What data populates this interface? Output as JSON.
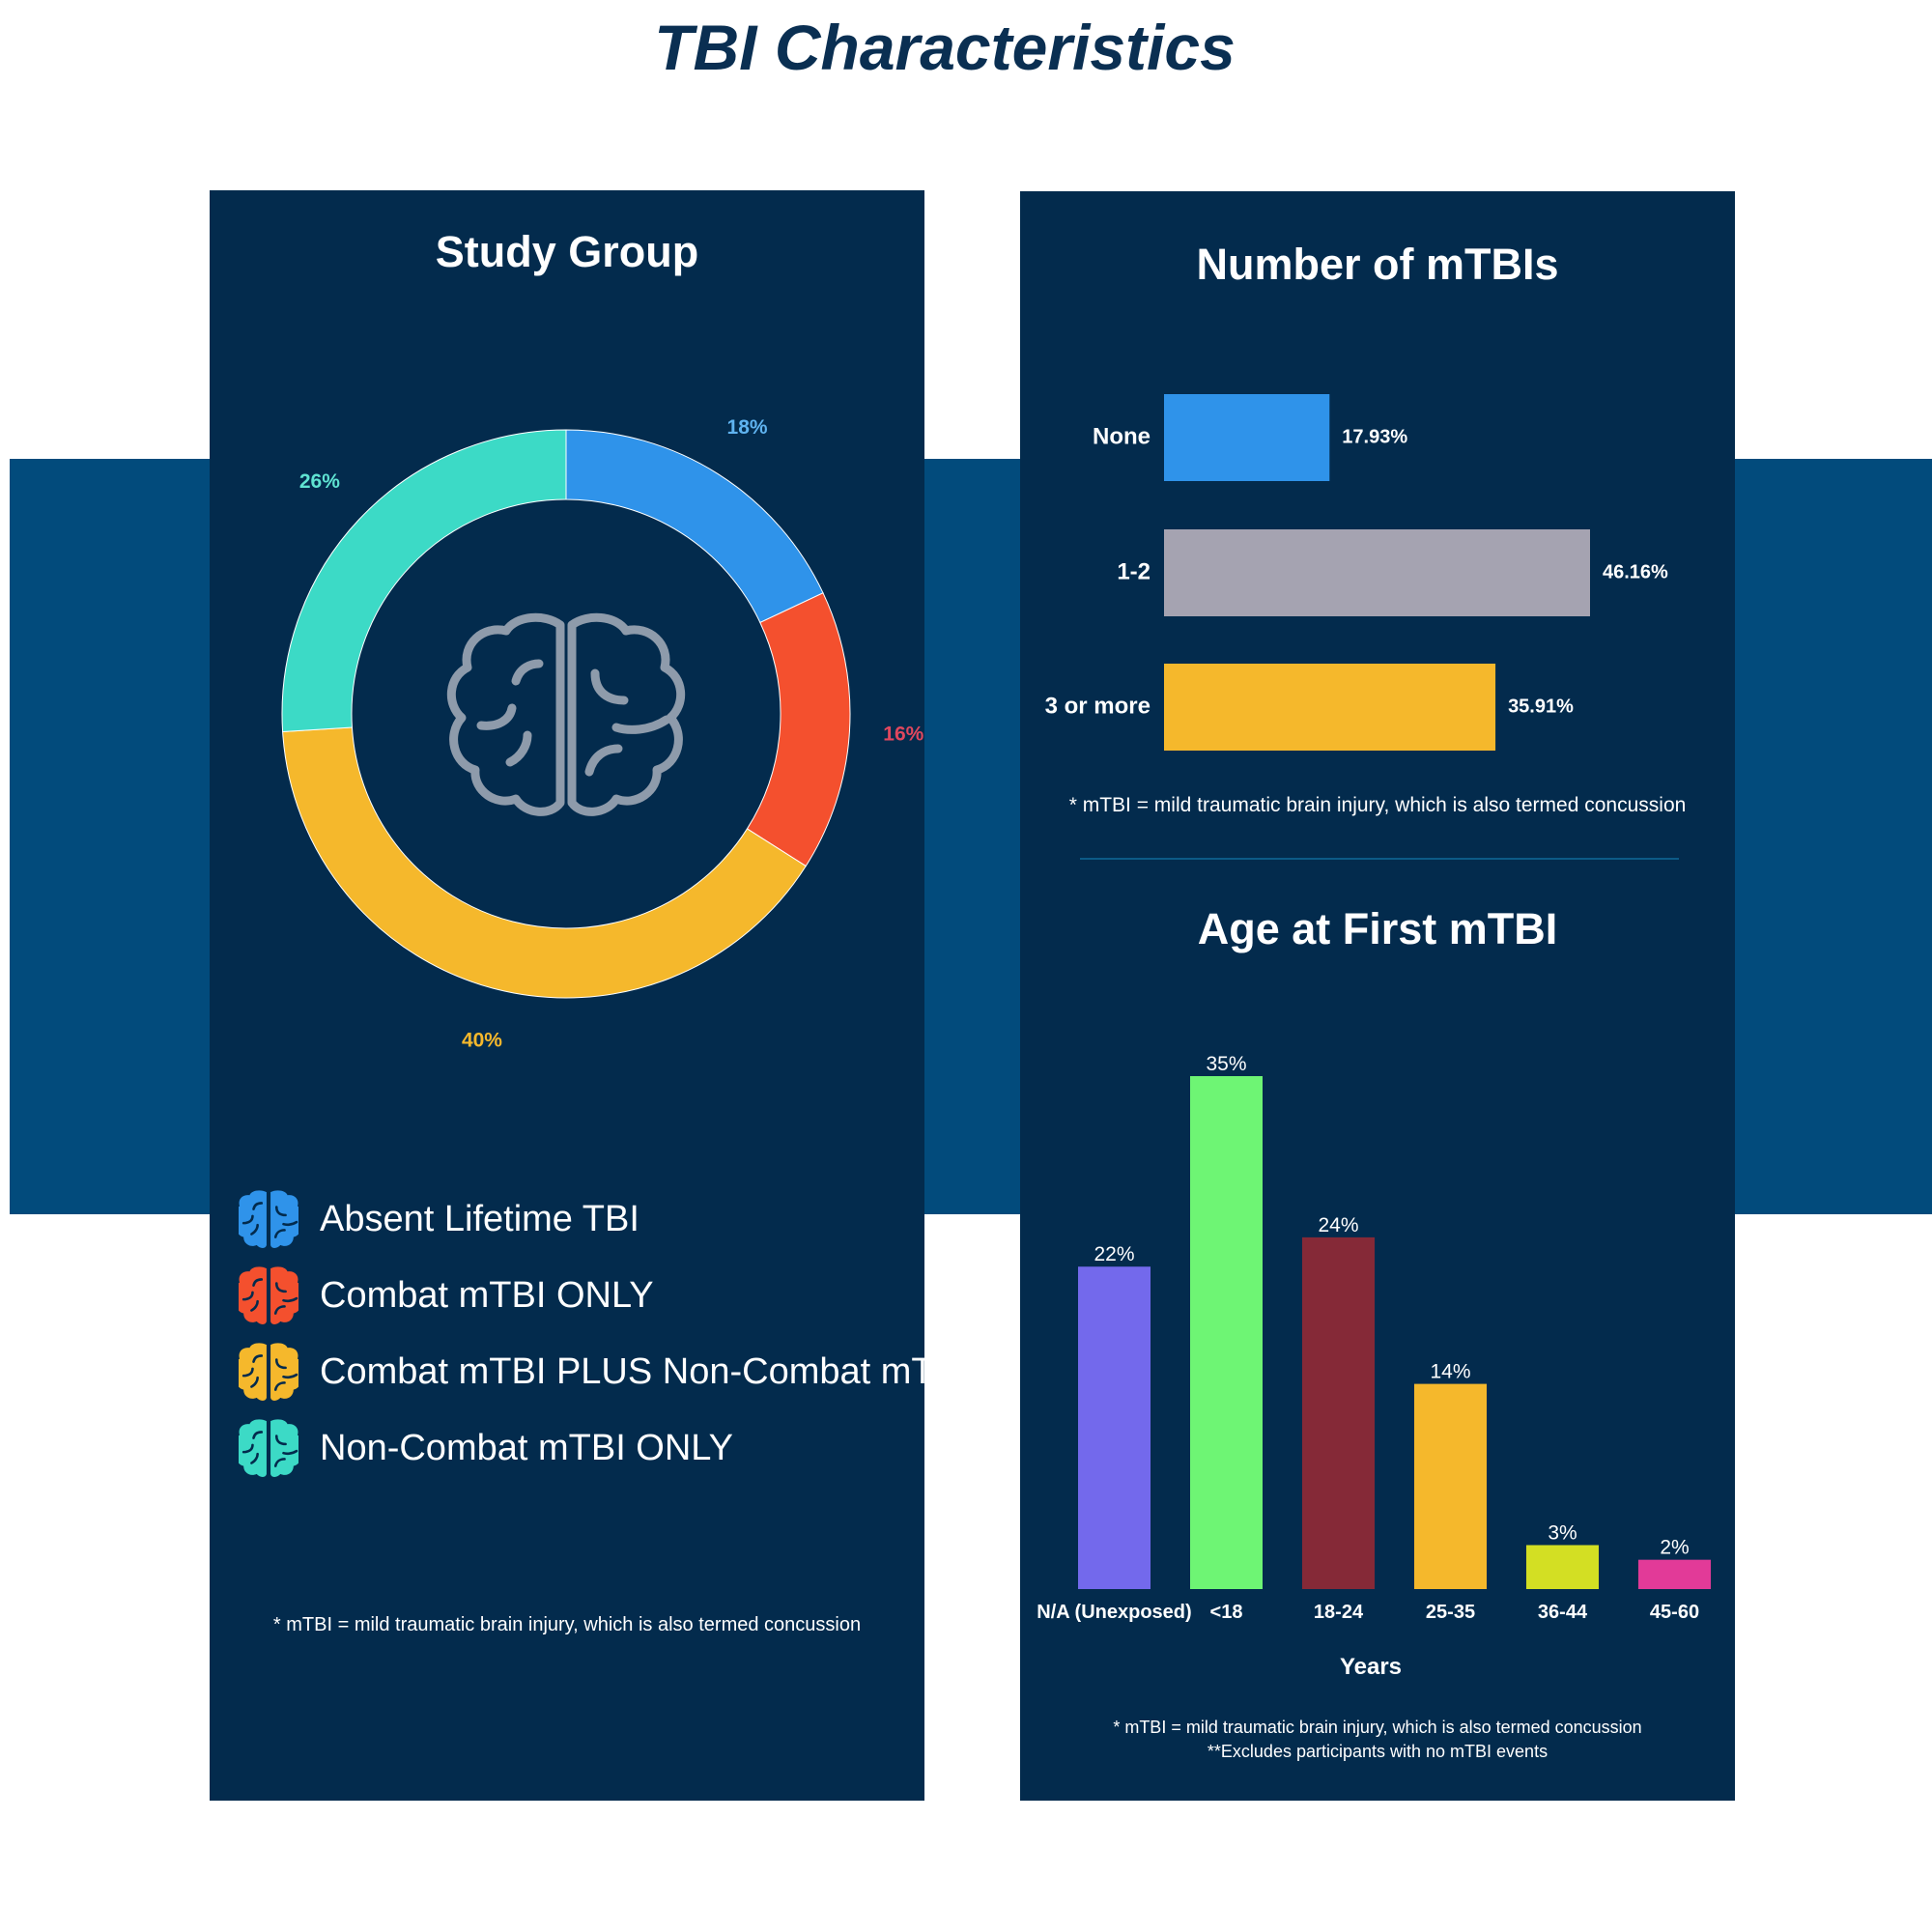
{
  "title": "TBI Characteristics",
  "study_group": {
    "title": "Study Group",
    "footnote": "* mTBI = mild traumatic brain injury, which is also termed concussion",
    "legend": [
      {
        "label": "Absent Lifetime TBI",
        "color": "#2f93ea"
      },
      {
        "label": "Combat mTBI ONLY",
        "color": "#f4502e"
      },
      {
        "label": "Combat mTBI PLUS Non-Combat mTBI",
        "color": "#f5b82c"
      },
      {
        "label": "Non-Combat mTBI ONLY",
        "color": "#3cdac6"
      }
    ],
    "center_icon": "brain-icon"
  },
  "number_mtbis": {
    "title": "Number of mTBIs",
    "footnote": "* mTBI = mild traumatic brain injury, which is also termed concussion"
  },
  "age_first": {
    "title": "Age at First mTBI",
    "footnote_1": "* mTBI = mild traumatic brain injury, which is also termed concussion",
    "footnote_2": "**Excludes participants with no mTBI events"
  },
  "chart_data": [
    {
      "type": "pie",
      "title": "Study Group",
      "categories": [
        "Absent Lifetime TBI",
        "Combat mTBI ONLY",
        "Combat mTBI PLUS Non-Combat mTBI",
        "Non-Combat mTBI ONLY"
      ],
      "values": [
        18,
        16,
        40,
        26
      ],
      "labels": [
        "18%",
        "16%",
        "40%",
        "26%"
      ],
      "colors": [
        "#2f93ea",
        "#f4502e",
        "#f5b82c",
        "#3cdac6"
      ],
      "label_colors": [
        "#5fb3f0",
        "#e0475e",
        "#f5b82c",
        "#5fe3d2"
      ],
      "donut": true
    },
    {
      "type": "bar",
      "orientation": "horizontal",
      "title": "Number of mTBIs",
      "categories": [
        "None",
        "1-2",
        "3 or more"
      ],
      "values": [
        17.93,
        46.16,
        35.91
      ],
      "labels": [
        "17.93%",
        "46.16%",
        "35.91%"
      ],
      "colors": [
        "#2f93ea",
        "#a5a3b1",
        "#f5b82c"
      ],
      "xlim": [
        0,
        50
      ]
    },
    {
      "type": "bar",
      "title": "Age at First mTBI",
      "xlabel": "Years",
      "categories": [
        "N/A (Unexposed)",
        "<18",
        "18-24",
        "25-35",
        "36-44",
        "45-60"
      ],
      "values": [
        22,
        35,
        24,
        14,
        3,
        2
      ],
      "labels": [
        "22%",
        "35%",
        "24%",
        "14%",
        "3%",
        "2%"
      ],
      "colors": [
        "#7369ec",
        "#6ef574",
        "#852937",
        "#f5b82c",
        "#d3df23",
        "#e23a98"
      ],
      "ylim": [
        0,
        35
      ]
    }
  ]
}
